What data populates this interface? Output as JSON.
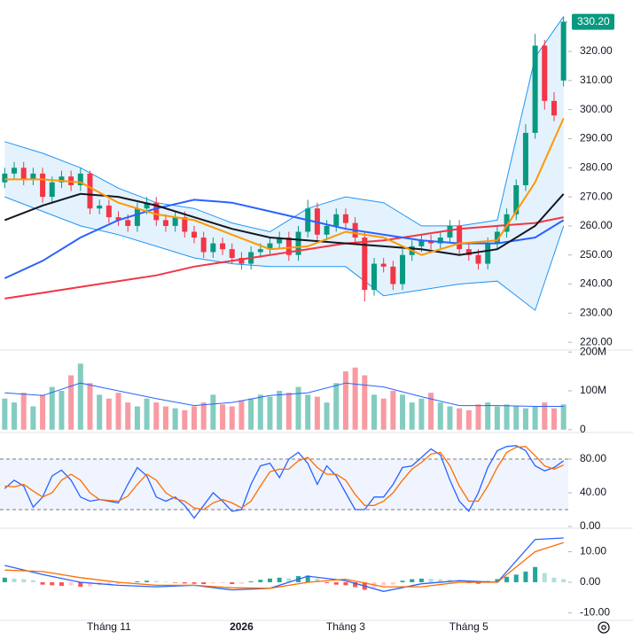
{
  "chart_data": [
    {
      "type": "candlestick",
      "categories": [
        null,
        null,
        null,
        null,
        null,
        null,
        null,
        null,
        null,
        null,
        null,
        "Tháng 11",
        null,
        null,
        null,
        null,
        null,
        null,
        null,
        null,
        null,
        null,
        null,
        null,
        null,
        "2026",
        null,
        null,
        null,
        null,
        null,
        null,
        null,
        null,
        null,
        null,
        "Tháng 3",
        null,
        null,
        null,
        null,
        null,
        null,
        null,
        null,
        null,
        null,
        null,
        null,
        "Tháng 5",
        null,
        null,
        null,
        null,
        null,
        null,
        null,
        null,
        null,
        null
      ],
      "open": [
        275,
        278,
        280,
        276,
        278,
        270,
        275,
        277,
        274,
        278,
        266,
        267,
        263,
        262,
        260,
        266,
        268,
        262,
        260,
        263,
        258,
        256,
        251,
        254,
        252,
        249,
        247,
        251,
        252,
        254,
        256,
        250,
        258,
        266,
        257,
        260,
        264,
        261,
        256,
        238,
        247,
        246,
        240,
        250,
        253,
        255,
        254,
        256,
        260,
        252,
        250,
        247,
        254,
        258,
        264,
        274,
        292,
        322,
        303,
        310
      ],
      "high": [
        280,
        282,
        282,
        280,
        280,
        277,
        279,
        279,
        280,
        279,
        269,
        269,
        265,
        264,
        268,
        270,
        270,
        264,
        265,
        265,
        260,
        258,
        256,
        256,
        254,
        251,
        253,
        254,
        256,
        258,
        258,
        260,
        269,
        268,
        262,
        266,
        266,
        263,
        258,
        249,
        249,
        248,
        252,
        255,
        257,
        257,
        258,
        262,
        262,
        254,
        252,
        256,
        260,
        266,
        276,
        295,
        326,
        324,
        306,
        332
      ],
      "low": [
        273,
        276,
        274,
        274,
        268,
        268,
        273,
        272,
        272,
        264,
        264,
        261,
        260,
        258,
        258,
        264,
        260,
        258,
        258,
        256,
        254,
        249,
        249,
        250,
        247,
        245,
        245,
        249,
        250,
        252,
        248,
        248,
        256,
        255,
        255,
        258,
        259,
        254,
        234,
        236,
        244,
        238,
        238,
        248,
        251,
        252,
        252,
        254,
        250,
        248,
        245,
        245,
        252,
        256,
        262,
        272,
        290,
        300,
        296,
        308
      ],
      "close": [
        278,
        280,
        276,
        278,
        270,
        275,
        277,
        274,
        278,
        266,
        267,
        263,
        262,
        260,
        266,
        268,
        262,
        260,
        263,
        258,
        256,
        251,
        254,
        252,
        249,
        247,
        251,
        252,
        254,
        256,
        250,
        258,
        266,
        257,
        260,
        264,
        261,
        256,
        238,
        247,
        246,
        240,
        250,
        253,
        255,
        254,
        256,
        260,
        252,
        250,
        247,
        254,
        258,
        264,
        274,
        292,
        322,
        303,
        298,
        330.2
      ],
      "last_label": "330.20",
      "up_color": "#089981",
      "down_color": "#f23645",
      "ylim": [
        217.3,
        337.7
      ],
      "yticks": [
        {
          "value": 220,
          "label": "220.00"
        },
        {
          "value": 230,
          "label": "230.00"
        },
        {
          "value": 240,
          "label": "240.00"
        },
        {
          "value": 250,
          "label": "250.00"
        },
        {
          "value": 260,
          "label": "260.00"
        },
        {
          "value": 270,
          "label": "270.00"
        },
        {
          "value": 280,
          "label": "280.00"
        },
        {
          "value": 290,
          "label": "290.00"
        },
        {
          "value": 300,
          "label": "300.00"
        },
        {
          "value": 310,
          "label": "310.00"
        },
        {
          "value": 320,
          "label": "320.00"
        }
      ],
      "lines": {
        "x": [
          0,
          4,
          8,
          12,
          16,
          20,
          24,
          28,
          32,
          36,
          40,
          44,
          48,
          52,
          56,
          59
        ],
        "series": [
          {
            "color": "#f23645",
            "values": [
              235,
              237,
              239,
              241,
              243,
              246,
              248,
              250,
              252,
              254,
              255,
              257,
              259,
              260,
              261,
              263
            ]
          },
          {
            "color": "#2962ff",
            "values": [
              242,
              248,
              256,
              262,
              266,
              269,
              268,
              265,
              262,
              259,
              257,
              255,
              254,
              254,
              256,
              262
            ]
          },
          {
            "color": "#131722",
            "values": [
              262,
              267,
              271,
              270,
              267,
              263,
              259,
              256,
              255,
              254,
              253,
              252,
              250,
              252,
              260,
              271
            ]
          },
          {
            "color": "#ff9800",
            "values": [
              276,
              276,
              275,
              268,
              264,
              262,
              257,
              252,
              253,
              258,
              256,
              250,
              254,
              255,
              275,
              297
            ]
          }
        ],
        "band": {
          "color": "#2196f3",
          "upper": [
            289,
            285,
            280,
            273,
            268,
            266,
            261,
            258,
            266,
            270,
            268,
            260,
            260,
            262,
            318,
            332
          ],
          "lower": [
            270,
            265,
            260,
            257,
            253,
            249,
            247,
            246,
            246,
            246,
            236,
            238,
            240,
            241,
            231,
            260
          ]
        }
      }
    },
    {
      "type": "bar",
      "values": [
        80000000,
        70000000,
        95000000,
        60000000,
        90000000,
        110000000,
        100000000,
        140000000,
        170000000,
        120000000,
        90000000,
        80000000,
        95000000,
        70000000,
        60000000,
        80000000,
        70000000,
        60000000,
        55000000,
        50000000,
        60000000,
        70000000,
        90000000,
        65000000,
        60000000,
        75000000,
        80000000,
        90000000,
        85000000,
        100000000,
        95000000,
        110000000,
        90000000,
        85000000,
        70000000,
        120000000,
        150000000,
        160000000,
        140000000,
        90000000,
        80000000,
        100000000,
        90000000,
        70000000,
        80000000,
        95000000,
        70000000,
        60000000,
        55000000,
        50000000,
        65000000,
        70000000,
        60000000,
        65000000,
        60000000,
        55000000,
        60000000,
        70000000,
        55000000,
        65000000
      ],
      "ma": {
        "color": "#2962ff",
        "x": [
          0,
          4,
          8,
          12,
          16,
          20,
          24,
          28,
          32,
          36,
          40,
          44,
          48,
          52,
          56,
          59
        ],
        "values": [
          95000000,
          88000000,
          120000000,
          100000000,
          80000000,
          62000000,
          70000000,
          88000000,
          95000000,
          120000000,
          110000000,
          85000000,
          62000000,
          62000000,
          60000000,
          60000000
        ]
      },
      "ylim": [
        -5000000,
        205000000
      ],
      "yticks": [
        0,
        {
          "value": 100000000,
          "label": "100M"
        },
        {
          "value": 200000000,
          "label": "200M"
        }
      ]
    },
    {
      "type": "line",
      "series": [
        {
          "color": "#2962ff",
          "values": [
            45,
            55,
            48,
            23,
            35,
            60,
            67,
            55,
            35,
            30,
            32,
            30,
            28,
            50,
            70,
            60,
            35,
            30,
            35,
            25,
            10,
            25,
            40,
            30,
            18,
            20,
            50,
            72,
            75,
            58,
            80,
            88,
            75,
            50,
            72,
            60,
            40,
            20,
            20,
            35,
            35,
            50,
            70,
            72,
            82,
            92,
            85,
            55,
            30,
            18,
            40,
            70,
            90,
            95,
            96,
            90,
            72,
            66,
            70,
            78
          ]
        },
        {
          "color": "#ff6d00",
          "values": [
            48,
            47,
            50,
            42,
            35,
            40,
            55,
            62,
            55,
            40,
            32,
            31,
            30,
            36,
            50,
            62,
            55,
            40,
            33,
            30,
            22,
            20,
            28,
            32,
            28,
            22,
            30,
            48,
            65,
            68,
            68,
            78,
            82,
            70,
            62,
            62,
            55,
            38,
            25,
            25,
            30,
            40,
            55,
            68,
            76,
            86,
            88,
            72,
            48,
            30,
            30,
            48,
            70,
            88,
            94,
            95,
            84,
            72,
            68,
            73
          ]
        }
      ],
      "levels": [
        20,
        80
      ],
      "ylim": [
        -1,
        111.6
      ],
      "yticks": [
        {
          "value": 0,
          "label": "0.00"
        },
        {
          "value": 40,
          "label": "40.00"
        },
        {
          "value": 80,
          "label": "80.00"
        }
      ]
    },
    {
      "type": "macd",
      "x": [
        0,
        4,
        8,
        12,
        16,
        20,
        24,
        28,
        32,
        36,
        40,
        44,
        48,
        52,
        56,
        59
      ],
      "series": [
        {
          "color": "#2962ff",
          "values": [
            5.5,
            2.5,
            0,
            -1,
            -1.5,
            -1,
            -2.5,
            -2,
            2,
            0.5,
            -3,
            -0.5,
            0.5,
            0,
            14,
            14.5
          ]
        },
        {
          "color": "#ff6d00",
          "values": [
            4,
            3.5,
            1.5,
            0,
            -1,
            -1,
            -1.8,
            -2,
            0,
            1,
            -1.5,
            -1.5,
            0,
            0,
            10,
            13
          ]
        }
      ],
      "histogram": [
        1.5,
        1.2,
        1,
        0.6,
        -0.8,
        -1,
        -1.2,
        -1,
        -1.5,
        -1.4,
        -1,
        -0.8,
        -0.6,
        -0.3,
        0.3,
        0.5,
        0.4,
        0.2,
        -0.2,
        -0.4,
        -0.5,
        -0.6,
        -0.4,
        -0.3,
        -0.6,
        -0.5,
        0.3,
        0.8,
        1.2,
        1.5,
        1.3,
        2,
        2.2,
        1.2,
        -0.3,
        -0.8,
        -1,
        -1.6,
        -2.5,
        -1.8,
        -1,
        -0.8,
        0.5,
        1,
        1.2,
        1.1,
        1,
        0.8,
        0.2,
        -0.3,
        -0.5,
        0.4,
        1,
        1.8,
        2.5,
        3.5,
        5,
        3,
        1.5,
        1
      ],
      "ylim": [
        -12.5,
        17.7
      ],
      "yticks": [
        {
          "value": -10,
          "label": "-10.00"
        },
        {
          "value": 0,
          "label": "0.00"
        },
        {
          "value": 10,
          "label": "10.00"
        }
      ]
    }
  ]
}
